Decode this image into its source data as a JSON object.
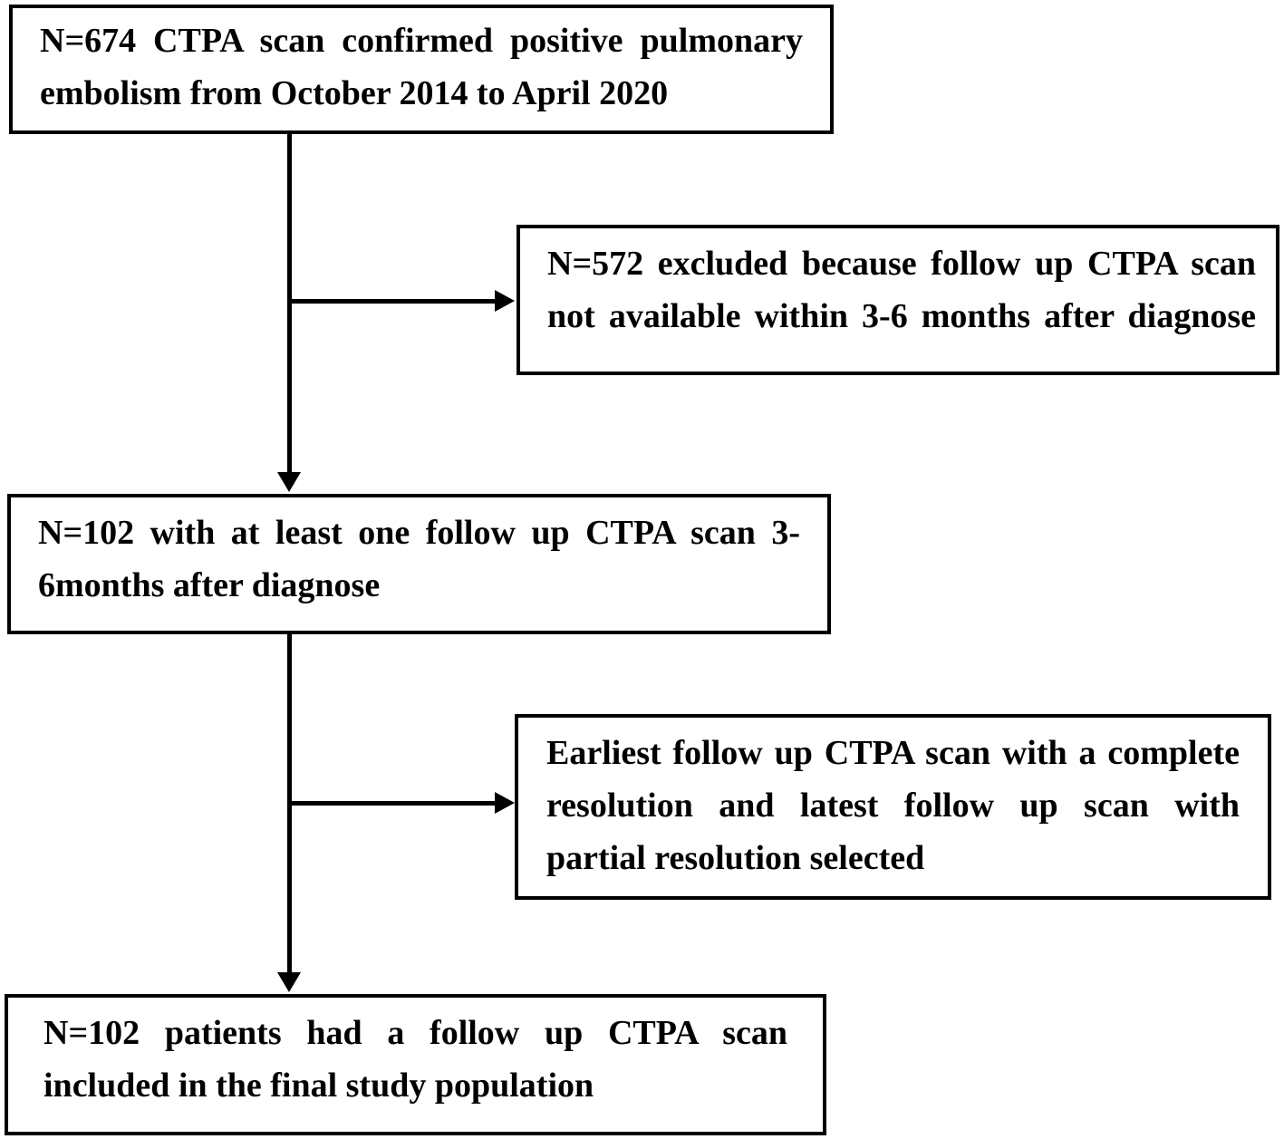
{
  "figure": {
    "type": "patient-flow-diagram",
    "background_color": "#ffffff",
    "line_color": "#000000",
    "text_color": "#000000",
    "boxes": [
      {
        "id": "initial",
        "text": "N=674 CTPA scan confirmed positive pulmonary embolism from October 2014 to April 2020"
      },
      {
        "id": "excluded",
        "text": "N=572 excluded because follow up CTPA scan not available within 3-6 months after diagnose"
      },
      {
        "id": "followup",
        "text": "N=102 with at least one follow up CTPA scan 3-6months after diagnose"
      },
      {
        "id": "scan-selection",
        "text": "Earliest follow up CTPA scan with a complete resolution and latest follow up scan with partial resolution selected"
      },
      {
        "id": "final",
        "text": "N=102 patients had a follow up CTPA scan included in the final study population"
      }
    ],
    "connectors": [
      {
        "id": "initial-to-followup",
        "type": "arrow-down"
      },
      {
        "id": "branch-to-excluded",
        "type": "arrow-right"
      },
      {
        "id": "followup-to-final",
        "type": "arrow-down"
      },
      {
        "id": "branch-to-scan-selection",
        "type": "arrow-right"
      }
    ]
  }
}
